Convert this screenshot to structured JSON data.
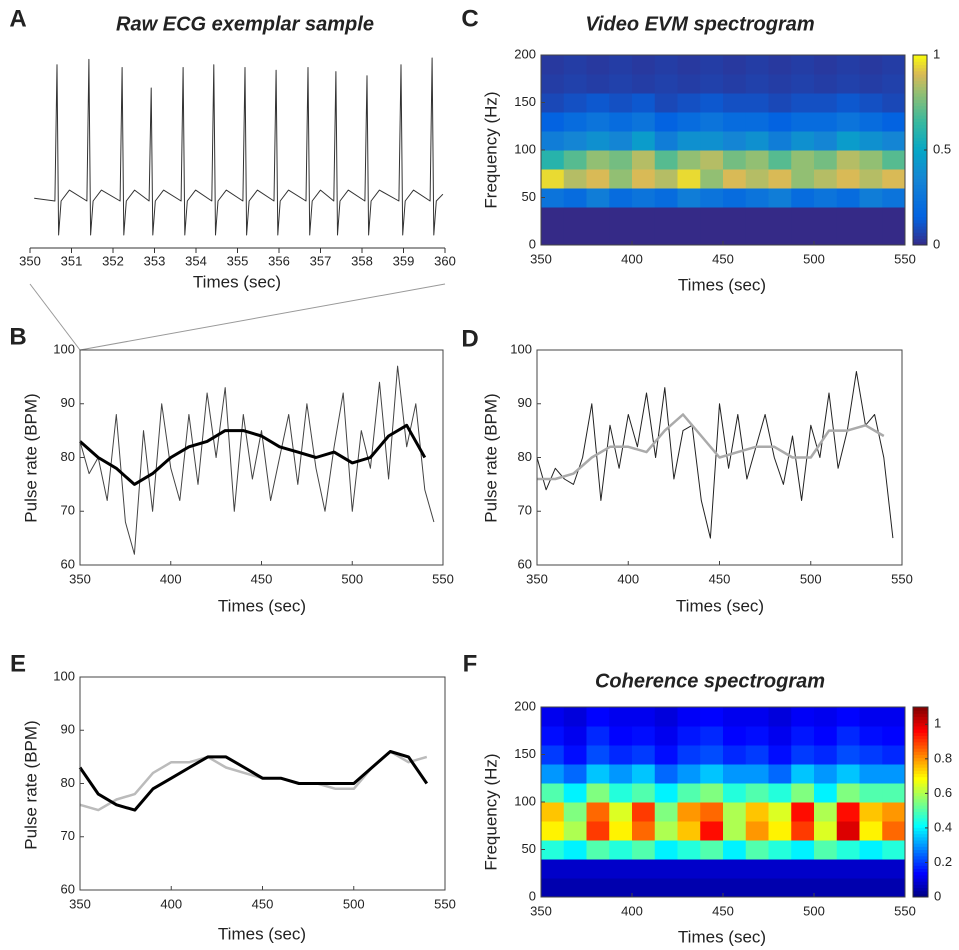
{
  "chart_data": [
    {
      "type": "line",
      "label": "A",
      "title": "Raw ECG exemplar sample",
      "xlabel": "Times (sec)",
      "xlim": [
        350,
        360
      ],
      "xticks": [
        350,
        351,
        352,
        353,
        354,
        355,
        356,
        357,
        358,
        359,
        360
      ],
      "series": [
        {
          "color": "#333333",
          "x": [
            350.1,
            350.6,
            350.65,
            350.69,
            350.75,
            350.95,
            351.37,
            351.42,
            351.46,
            351.52,
            351.72,
            352.17,
            352.22,
            352.26,
            352.32,
            352.52,
            352.87,
            352.92,
            352.96,
            353.02,
            353.22,
            353.64,
            353.69,
            353.73,
            353.79,
            353.99,
            354.38,
            354.43,
            354.47,
            354.53,
            354.73,
            355.13,
            355.18,
            355.22,
            355.28,
            355.48,
            355.88,
            355.93,
            355.97,
            356.03,
            356.23,
            356.65,
            356.7,
            356.74,
            356.8,
            357.0,
            357.32,
            357.37,
            357.41,
            357.47,
            357.67,
            358.07,
            358.12,
            358.16,
            358.22,
            358.42,
            358.89,
            358.94,
            358.98,
            359.04,
            359.24,
            359.64,
            359.69,
            359.73,
            359.79,
            359.95
          ],
          "values": [
            0.02,
            0,
            1,
            -0.25,
            0,
            0.08,
            0,
            1.04,
            -0.25,
            0,
            0.08,
            0,
            0.98,
            -0.25,
            0,
            0.08,
            0,
            0.83,
            -0.25,
            0,
            0.08,
            0,
            0.98,
            -0.25,
            0,
            0.08,
            0,
            1,
            -0.25,
            0,
            0.08,
            0,
            0.98,
            -0.25,
            0,
            0.08,
            0,
            0.96,
            -0.25,
            0,
            0.08,
            0,
            0.98,
            -0.25,
            0,
            0.08,
            0,
            0.95,
            -0.25,
            0,
            0.08,
            0,
            0.92,
            -0.25,
            0,
            0.08,
            0,
            1,
            -0.25,
            0,
            0.08,
            0,
            1.05,
            -0.25,
            0,
            0.05
          ]
        }
      ]
    },
    {
      "type": "heatmap",
      "label": "C",
      "title": "Video EVM spectrogram",
      "xlabel": "Times (sec)",
      "ylabel": "Frequency (Hz)",
      "xlim": [
        350,
        550
      ],
      "xticks": [
        350,
        400,
        450,
        500,
        550
      ],
      "ylim": [
        0,
        200
      ],
      "yticks": [
        0,
        50,
        100,
        150,
        200
      ],
      "colormap": "parula",
      "clim": [
        0,
        1
      ],
      "cticks": [
        0,
        0.5,
        1
      ],
      "xbins": [
        350,
        362.5,
        375,
        387.5,
        400,
        412.5,
        425,
        437.5,
        450,
        462.5,
        475,
        487.5,
        500,
        512.5,
        525,
        537.5,
        550
      ],
      "ybins": [
        0,
        20,
        40,
        60,
        80,
        100,
        120,
        140,
        160,
        180,
        200
      ],
      "z": [
        [
          0,
          0,
          0,
          0,
          0,
          0,
          0,
          0,
          0,
          0,
          0,
          0,
          0,
          0,
          0,
          0
        ],
        [
          0,
          0,
          0,
          0,
          0,
          0,
          0,
          0,
          0,
          0,
          0,
          0,
          0,
          0,
          0,
          0
        ],
        [
          0.25,
          0.2,
          0.3,
          0.2,
          0.25,
          0.2,
          0.3,
          0.25,
          0.2,
          0.25,
          0.3,
          0.2,
          0.25,
          0.2,
          0.3,
          0.25
        ],
        [
          0.95,
          0.85,
          0.9,
          0.8,
          0.9,
          0.85,
          0.95,
          0.8,
          0.9,
          0.85,
          0.9,
          0.8,
          0.85,
          0.9,
          0.85,
          0.9
        ],
        [
          0.6,
          0.7,
          0.8,
          0.75,
          0.85,
          0.7,
          0.8,
          0.85,
          0.75,
          0.8,
          0.7,
          0.8,
          0.75,
          0.85,
          0.8,
          0.7
        ],
        [
          0.3,
          0.35,
          0.4,
          0.35,
          0.45,
          0.3,
          0.4,
          0.4,
          0.35,
          0.4,
          0.3,
          0.4,
          0.35,
          0.45,
          0.4,
          0.35
        ],
        [
          0.15,
          0.2,
          0.25,
          0.2,
          0.25,
          0.15,
          0.2,
          0.25,
          0.2,
          0.2,
          0.15,
          0.2,
          0.2,
          0.25,
          0.2,
          0.15
        ],
        [
          0.08,
          0.1,
          0.12,
          0.1,
          0.12,
          0.08,
          0.1,
          0.12,
          0.1,
          0.1,
          0.08,
          0.1,
          0.1,
          0.12,
          0.1,
          0.08
        ],
        [
          0.05,
          0.06,
          0.05,
          0.06,
          0.05,
          0.06,
          0.05,
          0.06,
          0.05,
          0.06,
          0.05,
          0.06,
          0.05,
          0.06,
          0.05,
          0.06
        ],
        [
          0.04,
          0.05,
          0.04,
          0.05,
          0.04,
          0.05,
          0.04,
          0.05,
          0.04,
          0.05,
          0.04,
          0.05,
          0.04,
          0.05,
          0.04,
          0.05
        ]
      ]
    },
    {
      "type": "line",
      "label": "B",
      "xlabel": "Times (sec)",
      "ylabel": "Pulse rate (BPM)",
      "xlim": [
        350,
        550
      ],
      "xticks": [
        350,
        400,
        450,
        500,
        550
      ],
      "ylim": [
        60,
        100
      ],
      "yticks": [
        60,
        70,
        80,
        90,
        100
      ],
      "series": [
        {
          "color": "#444444",
          "x": [
            350,
            355,
            360,
            365,
            370,
            375,
            380,
            385,
            390,
            395,
            400,
            405,
            410,
            415,
            420,
            425,
            430,
            435,
            440,
            445,
            450,
            455,
            460,
            465,
            470,
            475,
            480,
            485,
            490,
            495,
            500,
            505,
            510,
            515,
            520,
            525,
            530,
            535,
            540,
            545
          ],
          "values": [
            83,
            77,
            80,
            72,
            88,
            68,
            62,
            85,
            70,
            90,
            78,
            72,
            88,
            75,
            92,
            80,
            93,
            70,
            88,
            76,
            85,
            72,
            80,
            88,
            75,
            90,
            78,
            70,
            82,
            92,
            70,
            85,
            78,
            94,
            76,
            97,
            82,
            90,
            74,
            68
          ]
        },
        {
          "color": "#000000",
          "x": [
            350,
            360,
            370,
            380,
            390,
            400,
            410,
            420,
            430,
            440,
            450,
            460,
            470,
            480,
            490,
            500,
            510,
            520,
            530,
            540
          ],
          "values": [
            83,
            80,
            78,
            75,
            77,
            80,
            82,
            83,
            85,
            85,
            84,
            82,
            81,
            80,
            81,
            79,
            80,
            84,
            86,
            80
          ]
        }
      ]
    },
    {
      "type": "line",
      "label": "D",
      "xlabel": "Times (sec)",
      "ylabel": "Pulse rate (BPM)",
      "xlim": [
        350,
        550
      ],
      "xticks": [
        350,
        400,
        450,
        500,
        550
      ],
      "ylim": [
        60,
        100
      ],
      "yticks": [
        60,
        70,
        80,
        90,
        100
      ],
      "series": [
        {
          "color": "#222222",
          "x": [
            350,
            355,
            360,
            365,
            370,
            375,
            380,
            385,
            390,
            395,
            400,
            405,
            410,
            415,
            420,
            425,
            430,
            435,
            440,
            445,
            450,
            455,
            460,
            465,
            470,
            475,
            480,
            485,
            490,
            495,
            500,
            505,
            510,
            515,
            520,
            525,
            530,
            535,
            540,
            545
          ],
          "values": [
            80,
            74,
            78,
            76,
            75,
            80,
            90,
            72,
            86,
            78,
            88,
            82,
            92,
            80,
            93,
            76,
            85,
            86,
            72,
            65,
            90,
            78,
            88,
            76,
            82,
            88,
            80,
            75,
            84,
            72,
            86,
            80,
            92,
            78,
            85,
            96,
            86,
            88,
            80,
            65
          ]
        },
        {
          "color": "#aaaaaa",
          "x": [
            350,
            360,
            370,
            380,
            390,
            400,
            410,
            420,
            430,
            440,
            450,
            460,
            470,
            480,
            490,
            500,
            510,
            520,
            530,
            540
          ],
          "values": [
            76,
            76,
            77,
            80,
            82,
            82,
            81,
            85,
            88,
            84,
            80,
            81,
            82,
            82,
            80,
            80,
            85,
            85,
            86,
            84
          ]
        }
      ]
    },
    {
      "type": "line",
      "label": "E",
      "xlabel": "Times (sec)",
      "ylabel": "Pulse rate (BPM)",
      "xlim": [
        350,
        550
      ],
      "xticks": [
        350,
        400,
        450,
        500,
        550
      ],
      "ylim": [
        60,
        100
      ],
      "yticks": [
        60,
        70,
        80,
        90,
        100
      ],
      "series": [
        {
          "color": "#bbbbbb",
          "x": [
            350,
            360,
            370,
            380,
            390,
            400,
            410,
            420,
            430,
            440,
            450,
            460,
            470,
            480,
            490,
            500,
            510,
            520,
            530,
            540
          ],
          "values": [
            76,
            75,
            77,
            78,
            82,
            84,
            84,
            85,
            83,
            82,
            81,
            81,
            80,
            80,
            79,
            79,
            83,
            86,
            84,
            85
          ]
        },
        {
          "color": "#000000",
          "x": [
            350,
            360,
            370,
            380,
            390,
            400,
            410,
            420,
            430,
            440,
            450,
            460,
            470,
            480,
            490,
            500,
            510,
            520,
            530,
            540
          ],
          "values": [
            83,
            78,
            76,
            75,
            79,
            81,
            83,
            85,
            85,
            83,
            81,
            81,
            80,
            80,
            80,
            80,
            83,
            86,
            85,
            80
          ]
        }
      ]
    },
    {
      "type": "heatmap",
      "label": "F",
      "title": "Coherence spectrogram",
      "xlabel": "Times (sec)",
      "ylabel": "Frequency (Hz)",
      "xlim": [
        350,
        550
      ],
      "xticks": [
        350,
        400,
        450,
        500,
        550
      ],
      "ylim": [
        0,
        200
      ],
      "yticks": [
        0,
        50,
        100,
        150,
        200
      ],
      "colormap": "jet",
      "clim": [
        0,
        1.1
      ],
      "cticks": [
        0,
        0.2,
        0.4,
        0.6,
        0.8,
        1
      ],
      "xbins": [
        350,
        362.5,
        375,
        387.5,
        400,
        412.5,
        425,
        437.5,
        450,
        462.5,
        475,
        487.5,
        500,
        512.5,
        525,
        537.5,
        550
      ],
      "ybins": [
        0,
        20,
        40,
        60,
        80,
        100,
        120,
        140,
        160,
        180,
        200
      ],
      "z": [
        [
          0.05,
          0.05,
          0.05,
          0.05,
          0.05,
          0.05,
          0.05,
          0.05,
          0.05,
          0.05,
          0.05,
          0.05,
          0.05,
          0.05,
          0.05,
          0.05
        ],
        [
          0.08,
          0.08,
          0.08,
          0.08,
          0.08,
          0.08,
          0.08,
          0.08,
          0.08,
          0.08,
          0.08,
          0.08,
          0.08,
          0.08,
          0.08,
          0.08
        ],
        [
          0.45,
          0.4,
          0.5,
          0.45,
          0.5,
          0.4,
          0.45,
          0.5,
          0.4,
          0.5,
          0.45,
          0.4,
          0.5,
          0.45,
          0.4,
          0.45
        ],
        [
          0.7,
          0.6,
          0.9,
          0.7,
          0.85,
          0.6,
          0.75,
          0.95,
          0.6,
          0.8,
          0.7,
          0.9,
          0.65,
          1.0,
          0.7,
          0.85
        ],
        [
          0.75,
          0.55,
          0.85,
          0.65,
          0.9,
          0.55,
          0.8,
          0.85,
          0.6,
          0.75,
          0.65,
          0.95,
          0.6,
          0.95,
          0.75,
          0.8
        ],
        [
          0.5,
          0.4,
          0.55,
          0.45,
          0.5,
          0.4,
          0.5,
          0.55,
          0.45,
          0.5,
          0.45,
          0.55,
          0.4,
          0.55,
          0.5,
          0.5
        ],
        [
          0.3,
          0.25,
          0.35,
          0.3,
          0.35,
          0.25,
          0.3,
          0.35,
          0.3,
          0.3,
          0.25,
          0.35,
          0.3,
          0.35,
          0.3,
          0.3
        ],
        [
          0.2,
          0.15,
          0.22,
          0.18,
          0.2,
          0.15,
          0.2,
          0.22,
          0.18,
          0.2,
          0.15,
          0.2,
          0.18,
          0.22,
          0.2,
          0.18
        ],
        [
          0.15,
          0.12,
          0.18,
          0.14,
          0.15,
          0.12,
          0.16,
          0.18,
          0.14,
          0.15,
          0.12,
          0.16,
          0.14,
          0.18,
          0.15,
          0.14
        ],
        [
          0.12,
          0.1,
          0.14,
          0.12,
          0.12,
          0.1,
          0.13,
          0.14,
          0.12,
          0.12,
          0.1,
          0.13,
          0.12,
          0.14,
          0.12,
          0.12
        ]
      ]
    }
  ]
}
